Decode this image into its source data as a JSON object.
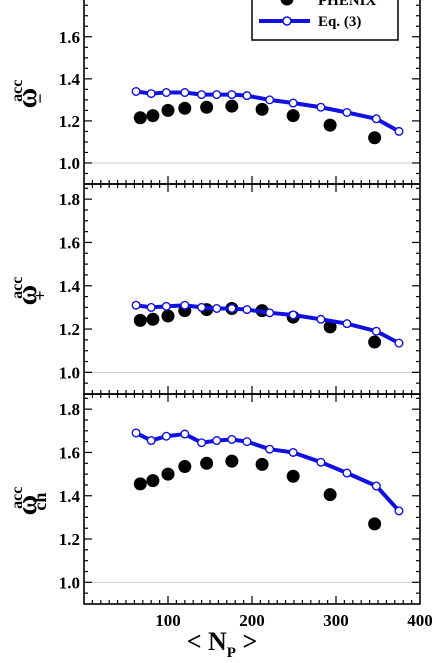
{
  "chart_data": [
    {
      "type": "scatter",
      "panel": "top",
      "ylabel": {
        "main": "ω",
        "sup": "acc",
        "sub": "−"
      },
      "xlim": [
        0,
        400
      ],
      "ylim": [
        0.9,
        1.87
      ],
      "yticks": [
        "1.0",
        "1.2",
        "1.4",
        "1.6"
      ],
      "reference_line": 1.0,
      "legend": {
        "position": "top-right",
        "entries": [
          {
            "label": "PHENIX",
            "marker": "filled-circle"
          },
          {
            "label": "Eq. (3)",
            "marker": "line-open-circle"
          }
        ]
      },
      "series": [
        {
          "name": "PHENIX",
          "style": "filled-circle",
          "color": "#000000",
          "points": [
            {
              "x": 67,
              "y": 1.215
            },
            {
              "x": 82,
              "y": 1.225
            },
            {
              "x": 100,
              "y": 1.25
            },
            {
              "x": 120,
              "y": 1.26
            },
            {
              "x": 146,
              "y": 1.265
            },
            {
              "x": 176,
              "y": 1.27
            },
            {
              "x": 212,
              "y": 1.255
            },
            {
              "x": 249,
              "y": 1.225
            },
            {
              "x": 293,
              "y": 1.18,
              "xerr": 6
            },
            {
              "x": 346,
              "y": 1.12,
              "xerr": 6
            }
          ]
        },
        {
          "name": "Eq. (3)",
          "style": "line-open-circle",
          "color": "#1010e0",
          "points": [
            {
              "x": 62,
              "y": 1.34
            },
            {
              "x": 80,
              "y": 1.33
            },
            {
              "x": 98,
              "y": 1.335
            },
            {
              "x": 120,
              "y": 1.335
            },
            {
              "x": 140,
              "y": 1.325
            },
            {
              "x": 158,
              "y": 1.325
            },
            {
              "x": 176,
              "y": 1.325
            },
            {
              "x": 194,
              "y": 1.32
            },
            {
              "x": 221,
              "y": 1.3
            },
            {
              "x": 249,
              "y": 1.285
            },
            {
              "x": 282,
              "y": 1.265
            },
            {
              "x": 313,
              "y": 1.24
            },
            {
              "x": 348,
              "y": 1.21
            },
            {
              "x": 375,
              "y": 1.15
            }
          ]
        }
      ]
    },
    {
      "type": "scatter",
      "panel": "middle",
      "ylabel": {
        "main": "ω",
        "sup": "acc",
        "sub": "+"
      },
      "xlim": [
        0,
        400
      ],
      "ylim": [
        0.9,
        1.87
      ],
      "yticks": [
        "1.0",
        "1.2",
        "1.4",
        "1.6",
        "1.8"
      ],
      "reference_line": 1.0,
      "series": [
        {
          "name": "PHENIX",
          "style": "filled-circle",
          "color": "#000000",
          "points": [
            {
              "x": 67,
              "y": 1.24
            },
            {
              "x": 82,
              "y": 1.245
            },
            {
              "x": 100,
              "y": 1.26
            },
            {
              "x": 120,
              "y": 1.285
            },
            {
              "x": 146,
              "y": 1.29
            },
            {
              "x": 176,
              "y": 1.295
            },
            {
              "x": 212,
              "y": 1.285
            },
            {
              "x": 249,
              "y": 1.255
            },
            {
              "x": 293,
              "y": 1.21,
              "xerr": 6
            },
            {
              "x": 346,
              "y": 1.14,
              "xerr": 6
            }
          ]
        },
        {
          "name": "Eq. (3)",
          "style": "line-open-circle",
          "color": "#1010e0",
          "points": [
            {
              "x": 62,
              "y": 1.31
            },
            {
              "x": 80,
              "y": 1.3
            },
            {
              "x": 98,
              "y": 1.305
            },
            {
              "x": 120,
              "y": 1.31
            },
            {
              "x": 140,
              "y": 1.3
            },
            {
              "x": 158,
              "y": 1.295
            },
            {
              "x": 176,
              "y": 1.295
            },
            {
              "x": 194,
              "y": 1.29
            },
            {
              "x": 221,
              "y": 1.275
            },
            {
              "x": 249,
              "y": 1.265
            },
            {
              "x": 282,
              "y": 1.245
            },
            {
              "x": 313,
              "y": 1.225
            },
            {
              "x": 348,
              "y": 1.19
            },
            {
              "x": 375,
              "y": 1.135
            }
          ]
        }
      ]
    },
    {
      "type": "scatter",
      "panel": "bottom",
      "ylabel": {
        "main": "ω",
        "sup": "acc",
        "sub": "ch"
      },
      "xlabel": {
        "main": "< N",
        "sub": "P",
        "tail": " >"
      },
      "xlim": [
        0,
        400
      ],
      "xticks": [
        "100",
        "200",
        "300",
        "400"
      ],
      "ylim": [
        0.9,
        1.87
      ],
      "yticks": [
        "1.0",
        "1.2",
        "1.4",
        "1.6",
        "1.8"
      ],
      "reference_line": 1.0,
      "series": [
        {
          "name": "PHENIX",
          "style": "filled-circle",
          "color": "#000000",
          "points": [
            {
              "x": 67,
              "y": 1.455
            },
            {
              "x": 82,
              "y": 1.47
            },
            {
              "x": 100,
              "y": 1.5
            },
            {
              "x": 120,
              "y": 1.535
            },
            {
              "x": 146,
              "y": 1.55
            },
            {
              "x": 176,
              "y": 1.56
            },
            {
              "x": 212,
              "y": 1.545
            },
            {
              "x": 249,
              "y": 1.49
            },
            {
              "x": 293,
              "y": 1.405,
              "xerr": 6
            },
            {
              "x": 346,
              "y": 1.27,
              "xerr": 6
            }
          ]
        },
        {
          "name": "Eq. (3)",
          "style": "line-open-circle",
          "color": "#1010e0",
          "points": [
            {
              "x": 62,
              "y": 1.69
            },
            {
              "x": 80,
              "y": 1.655
            },
            {
              "x": 98,
              "y": 1.675
            },
            {
              "x": 120,
              "y": 1.685
            },
            {
              "x": 140,
              "y": 1.645
            },
            {
              "x": 158,
              "y": 1.655
            },
            {
              "x": 176,
              "y": 1.66
            },
            {
              "x": 194,
              "y": 1.65
            },
            {
              "x": 221,
              "y": 1.615
            },
            {
              "x": 249,
              "y": 1.6
            },
            {
              "x": 282,
              "y": 1.555
            },
            {
              "x": 313,
              "y": 1.505
            },
            {
              "x": 348,
              "y": 1.445
            },
            {
              "x": 375,
              "y": 1.33
            }
          ]
        }
      ]
    }
  ],
  "legend_labels": {
    "phenix": "PHENIX",
    "eq3": "Eq. (3)"
  }
}
